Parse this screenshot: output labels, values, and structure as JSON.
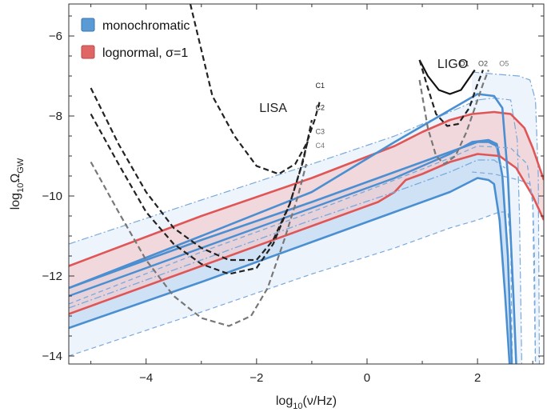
{
  "chart_data": {
    "type": "line",
    "title": "",
    "xlabel": {
      "pre": "log",
      "sub": "10",
      "post": "(ν/Hz)"
    },
    "ylabel": {
      "pre": "log",
      "sub": "10",
      "mid": "Ω",
      "sub2": "GW"
    },
    "xlim": [
      -5.4,
      3.2
    ],
    "ylim": [
      -14.2,
      -5.2
    ],
    "x_ticks": [
      {
        "v": -4,
        "label": "−4"
      },
      {
        "v": -2,
        "label": "−2"
      },
      {
        "v": 0,
        "label": "0"
      },
      {
        "v": 2,
        "label": "2"
      }
    ],
    "y_ticks": [
      {
        "v": -6,
        "label": "−6"
      },
      {
        "v": -8,
        "label": "−8"
      },
      {
        "v": -10,
        "label": "−10"
      },
      {
        "v": -12,
        "label": "−12"
      },
      {
        "v": -14,
        "label": "−14"
      }
    ],
    "legend": {
      "placement": "top-left",
      "entries": [
        {
          "text": "monochromatic",
          "color": "#5b9bd5"
        },
        {
          "text": "lognormal, σ=1",
          "color": "#e06666"
        }
      ]
    },
    "annotations": [
      {
        "text": "LISA",
        "x": -1.7,
        "y": -7.9
      },
      {
        "text": "LIGO",
        "x": 1.55,
        "y": -6.8
      }
    ],
    "colors": {
      "mono": "#4a8fd1",
      "mono_fill": "#c9ddf3",
      "mono_light_fill": "#eef4fb",
      "lognormal": "#e05555",
      "lognormal_fill": "#f2c9cc",
      "overlap_fill": "#d6c7dd"
    },
    "series": [
      {
        "band": "mono-outer",
        "style": "dashdot-light",
        "upper": [
          [
            -5.4,
            -11.2
          ],
          [
            -3,
            -10.1
          ],
          [
            -1,
            -9.2
          ],
          [
            0.5,
            -8.5
          ],
          [
            1.5,
            -7.9
          ],
          [
            2,
            -7.6
          ],
          [
            2.3,
            -7.55
          ],
          [
            2.6,
            -7.6
          ],
          [
            2.72,
            -8.6
          ],
          [
            2.76,
            -10.5
          ],
          [
            2.8,
            -14.2
          ]
        ],
        "lower": [
          [
            -5.4,
            -14.0
          ],
          [
            -3,
            -12.9
          ],
          [
            -1,
            -11.95
          ],
          [
            0.5,
            -11.3
          ],
          [
            1.5,
            -10.8
          ],
          [
            2,
            -10.6
          ],
          [
            2.2,
            -10.5
          ],
          [
            2.4,
            -10.4
          ],
          [
            2.55,
            -10.4
          ],
          [
            2.6,
            -11.2
          ],
          [
            2.63,
            -14.2
          ]
        ]
      },
      {
        "band": "mono-outer-right",
        "style": "dashdot-light",
        "upper": [
          [
            1.9,
            -6.9
          ],
          [
            2.3,
            -6.95
          ],
          [
            2.75,
            -7.0
          ],
          [
            2.95,
            -7.1
          ],
          [
            3.05,
            -7.6
          ],
          [
            3.1,
            -9.5
          ],
          [
            3.12,
            -14.2
          ]
        ],
        "lower": [
          [
            1.9,
            -9.4
          ],
          [
            2.3,
            -9.45
          ],
          [
            2.75,
            -9.6
          ],
          [
            2.95,
            -9.7
          ],
          [
            3.0,
            -10.1
          ],
          [
            3.03,
            -11.5
          ],
          [
            3.05,
            -14.2
          ]
        ]
      },
      {
        "band": "mono-fill",
        "upper": [
          [
            -5.4,
            -12.3
          ],
          [
            -3,
            -11.1
          ],
          [
            -1,
            -10.15
          ],
          [
            0.5,
            -9.4
          ],
          [
            1.5,
            -8.9
          ],
          [
            2,
            -8.65
          ],
          [
            2.2,
            -8.65
          ],
          [
            2.35,
            -8.75
          ],
          [
            2.45,
            -9.5
          ],
          [
            2.55,
            -11.5
          ],
          [
            2.62,
            -14.2
          ]
        ],
        "lower": [
          [
            -5.4,
            -13.3
          ],
          [
            -3,
            -12.15
          ],
          [
            -1,
            -11.15
          ],
          [
            0.5,
            -10.4
          ],
          [
            1.5,
            -9.9
          ],
          [
            2,
            -9.55
          ],
          [
            2.2,
            -9.6
          ],
          [
            2.3,
            -9.7
          ],
          [
            2.4,
            -10.6
          ],
          [
            2.5,
            -12.5
          ],
          [
            2.58,
            -14.2
          ]
        ]
      },
      {
        "band": "lognormal-fill",
        "upper": [
          [
            -5.4,
            -11.75
          ],
          [
            -3,
            -10.5
          ],
          [
            -1,
            -9.55
          ],
          [
            0.5,
            -8.75
          ],
          [
            1,
            -8.4
          ],
          [
            1.5,
            -8.1
          ],
          [
            1.9,
            -7.95
          ],
          [
            2.3,
            -7.9
          ],
          [
            2.6,
            -7.95
          ],
          [
            2.85,
            -8.3
          ],
          [
            3.0,
            -8.8
          ],
          [
            3.2,
            -9.6
          ]
        ],
        "lower": [
          [
            -5.4,
            -12.95
          ],
          [
            -3,
            -11.75
          ],
          [
            -1,
            -10.75
          ],
          [
            0.2,
            -10.15
          ],
          [
            0.5,
            -9.9
          ],
          [
            0.7,
            -9.6
          ],
          [
            1,
            -9.45
          ],
          [
            1.5,
            -9.15
          ],
          [
            2,
            -8.95
          ],
          [
            2.4,
            -9.0
          ],
          [
            2.7,
            -9.3
          ],
          [
            3.0,
            -10.0
          ],
          [
            3.2,
            -10.6
          ]
        ]
      },
      {
        "name": "monochromatic",
        "style": "solid",
        "points": [
          [
            -5.4,
            -12.3
          ],
          [
            -3,
            -11.1
          ],
          [
            -1,
            -10.15
          ],
          [
            0.5,
            -9.4
          ],
          [
            1.5,
            -8.9
          ],
          [
            2,
            -8.65
          ],
          [
            2.2,
            -8.65
          ],
          [
            2.35,
            -8.75
          ],
          [
            2.45,
            -9.5
          ],
          [
            2.55,
            -11.5
          ],
          [
            2.62,
            -14.2
          ]
        ]
      },
      {
        "name": "monochromatic",
        "style": "solid",
        "points": [
          [
            -5.4,
            -13.3
          ],
          [
            -3,
            -12.15
          ],
          [
            -1,
            -11.15
          ],
          [
            0.5,
            -10.4
          ],
          [
            1.5,
            -9.9
          ],
          [
            2,
            -9.55
          ],
          [
            2.2,
            -9.6
          ],
          [
            2.3,
            -9.7
          ],
          [
            2.4,
            -10.6
          ],
          [
            2.5,
            -12.5
          ],
          [
            2.58,
            -14.2
          ]
        ]
      },
      {
        "name": "lognormal",
        "style": "solid",
        "points": [
          [
            -5.4,
            -11.75
          ],
          [
            -3,
            -10.5
          ],
          [
            -1,
            -9.55
          ],
          [
            0.5,
            -8.75
          ],
          [
            1,
            -8.4
          ],
          [
            1.5,
            -8.1
          ],
          [
            1.9,
            -7.95
          ],
          [
            2.3,
            -7.9
          ],
          [
            2.6,
            -7.95
          ],
          [
            2.85,
            -8.3
          ],
          [
            3.0,
            -8.8
          ],
          [
            3.2,
            -9.6
          ]
        ]
      },
      {
        "name": "lognormal",
        "style": "solid",
        "points": [
          [
            -5.4,
            -12.95
          ],
          [
            -3,
            -11.75
          ],
          [
            -1,
            -10.75
          ],
          [
            0.2,
            -10.15
          ],
          [
            0.5,
            -9.9
          ],
          [
            0.7,
            -9.6
          ],
          [
            1,
            -9.45
          ],
          [
            1.5,
            -9.15
          ],
          [
            2,
            -8.95
          ],
          [
            2.4,
            -9.0
          ],
          [
            2.7,
            -9.3
          ],
          [
            3.0,
            -10.0
          ],
          [
            3.2,
            -10.6
          ]
        ]
      },
      {
        "name": "monochromatic",
        "style": "solid-upper",
        "points": [
          [
            -5.4,
            -12.5
          ],
          [
            -3,
            -11.3
          ],
          [
            -1,
            -10.3
          ],
          [
            0.5,
            -9.55
          ],
          [
            1.5,
            -8.95
          ],
          [
            1.9,
            -8.65
          ],
          [
            2.2,
            -8.6
          ],
          [
            2.35,
            -8.7
          ],
          [
            2.4,
            -9.0
          ]
        ]
      },
      {
        "name": "monochromatic",
        "style": "solid-top",
        "points": [
          [
            -5.4,
            -12.3
          ],
          [
            -3,
            -11.0
          ],
          [
            -1,
            -9.9
          ],
          [
            0.5,
            -8.65
          ],
          [
            1.5,
            -7.85
          ],
          [
            2,
            -7.45
          ],
          [
            2.3,
            -7.5
          ],
          [
            2.45,
            -7.8
          ],
          [
            2.55,
            -9.5
          ],
          [
            2.65,
            -12.5
          ],
          [
            2.7,
            -14.2
          ]
        ]
      },
      {
        "name": "monochromatic",
        "style": "dashdot",
        "points": [
          [
            -5.4,
            -12.8
          ],
          [
            -3,
            -11.6
          ],
          [
            -1,
            -10.6
          ],
          [
            0.5,
            -9.9
          ],
          [
            1.5,
            -9.4
          ],
          [
            2,
            -9.1
          ],
          [
            2.3,
            -9.1
          ],
          [
            2.5,
            -9.3
          ]
        ]
      },
      {
        "name": "monochromatic",
        "style": "dashed-light",
        "points": [
          [
            -5.4,
            -12.7
          ],
          [
            -3,
            -11.4
          ],
          [
            -1,
            -10.4
          ],
          [
            0.5,
            -9.6
          ],
          [
            1.5,
            -9.05
          ],
          [
            2,
            -8.75
          ],
          [
            2.6,
            -8.8
          ],
          [
            2.9,
            -9.2
          ],
          [
            3.0,
            -10.2
          ],
          [
            3.05,
            -14.2
          ]
        ]
      },
      {
        "name": "C1",
        "style": "dashed-dark",
        "points": [
          [
            -3.2,
            -5.2
          ],
          [
            -2.8,
            -7.5
          ],
          [
            -2.4,
            -8.5
          ],
          [
            -2.0,
            -9.25
          ],
          [
            -1.6,
            -9.45
          ],
          [
            -1.3,
            -9.2
          ],
          [
            -1.1,
            -8.7
          ],
          [
            -0.95,
            -8.1
          ],
          [
            -0.85,
            -7.6
          ]
        ]
      },
      {
        "name": "C2",
        "style": "dashed-dark",
        "points": [
          [
            -5.0,
            -7.3
          ],
          [
            -4.5,
            -8.7
          ],
          [
            -4.0,
            -9.9
          ],
          [
            -3.5,
            -10.8
          ],
          [
            -3.0,
            -11.3
          ],
          [
            -2.5,
            -11.6
          ],
          [
            -2.0,
            -11.6
          ],
          [
            -1.7,
            -11.1
          ],
          [
            -1.4,
            -10.2
          ],
          [
            -1.15,
            -9.1
          ],
          [
            -1.0,
            -8.1
          ]
        ]
      },
      {
        "name": "C3",
        "style": "dashed-dark",
        "points": [
          [
            -5.0,
            -7.95
          ],
          [
            -4.5,
            -9.2
          ],
          [
            -4.0,
            -10.4
          ],
          [
            -3.5,
            -11.2
          ],
          [
            -3.0,
            -11.7
          ],
          [
            -2.5,
            -11.95
          ],
          [
            -2.0,
            -11.8
          ],
          [
            -1.7,
            -11.2
          ],
          [
            -1.4,
            -10.2
          ],
          [
            -1.2,
            -9.3
          ],
          [
            -1.05,
            -8.5
          ]
        ]
      },
      {
        "name": "C4",
        "style": "dashed-grey",
        "points": [
          [
            -5.0,
            -9.15
          ],
          [
            -4.5,
            -10.4
          ],
          [
            -4.0,
            -11.6
          ],
          [
            -3.5,
            -12.5
          ],
          [
            -3.0,
            -13.05
          ],
          [
            -2.5,
            -13.25
          ],
          [
            -2.1,
            -13.0
          ],
          [
            -1.8,
            -12.3
          ],
          [
            -1.5,
            -11.1
          ],
          [
            -1.25,
            -10.0
          ],
          [
            -1.1,
            -9.2
          ]
        ]
      },
      {
        "name": "O1",
        "style": "solid-dark",
        "points": [
          [
            0.95,
            -6.6
          ],
          [
            1.1,
            -7.0
          ],
          [
            1.3,
            -7.35
          ],
          [
            1.5,
            -7.45
          ],
          [
            1.7,
            -7.35
          ],
          [
            1.85,
            -7.05
          ],
          [
            1.95,
            -6.85
          ]
        ]
      },
      {
        "name": "O2",
        "style": "dashed-dark",
        "points": [
          [
            0.95,
            -6.6
          ],
          [
            1.1,
            -7.3
          ],
          [
            1.25,
            -7.95
          ],
          [
            1.45,
            -8.25
          ],
          [
            1.65,
            -8.2
          ],
          [
            1.85,
            -7.8
          ],
          [
            2.0,
            -7.2
          ],
          [
            2.1,
            -6.85
          ]
        ]
      },
      {
        "name": "O5",
        "style": "dashed-grey",
        "points": [
          [
            0.95,
            -7.1
          ],
          [
            1.1,
            -8.3
          ],
          [
            1.25,
            -9.0
          ],
          [
            1.4,
            -9.2
          ],
          [
            1.6,
            -9.0
          ],
          [
            1.8,
            -8.4
          ],
          [
            1.95,
            -7.8
          ],
          [
            2.1,
            -7.2
          ],
          [
            2.2,
            -6.85
          ]
        ]
      }
    ],
    "curve_labels": [
      {
        "text": "C1",
        "x": -0.85,
        "y": -7.3,
        "color": "#222222"
      },
      {
        "text": "C2",
        "x": -0.85,
        "y": -7.85,
        "color": "#222222"
      },
      {
        "text": "C3",
        "x": -0.85,
        "y": -8.45,
        "color": "#555555"
      },
      {
        "text": "C4",
        "x": -0.85,
        "y": -8.8,
        "color": "#777777"
      },
      {
        "text": "O1",
        "x": 1.76,
        "y": -6.75,
        "color": "#222222"
      },
      {
        "text": "O2",
        "x": 2.1,
        "y": -6.75,
        "color": "#444444"
      },
      {
        "text": "O5",
        "x": 2.48,
        "y": -6.75,
        "color": "#777777"
      }
    ],
    "grid": false
  }
}
